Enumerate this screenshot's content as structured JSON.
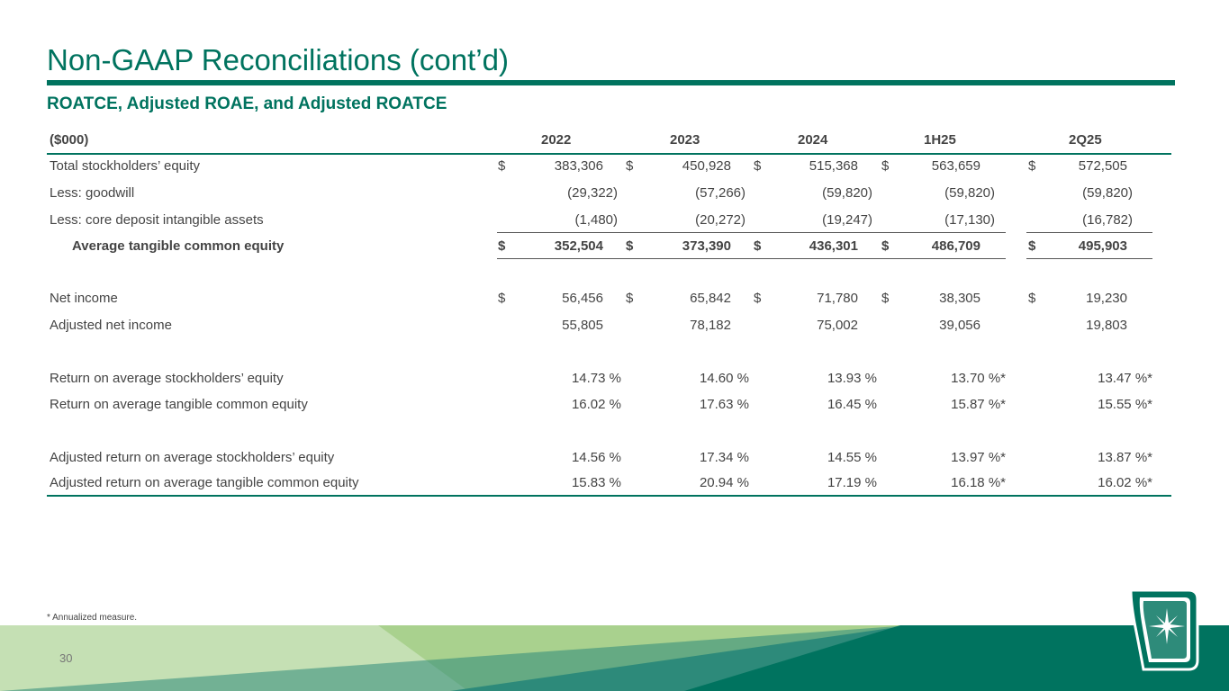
{
  "page": {
    "title": "Non-GAAP Reconciliations (cont’d)",
    "subtitle": "ROATCE, Adjusted ROAE, and Adjusted ROATCE",
    "footnote": "* Annualized measure.",
    "page_number": "30"
  },
  "colors": {
    "brand_green": "#00735f",
    "light_green": "#a9d18e",
    "pale_green": "#c5e0b4",
    "teal": "#2e8b7a"
  },
  "table": {
    "unit_label": "($000)",
    "columns": [
      "2022",
      "2023",
      "2024",
      "1H25",
      "2Q25"
    ],
    "rows": [
      {
        "label": "Total stockholders’ equity",
        "currency": "$",
        "values": [
          "383,306",
          "450,928",
          "515,368",
          "563,659",
          "572,505"
        ]
      },
      {
        "label": "Less: goodwill",
        "currency": "",
        "values": [
          "(29,322)",
          "(57,266)",
          "(59,820)",
          "(59,820)",
          "(59,820)"
        ]
      },
      {
        "label": "Less: core deposit intangible assets",
        "currency": "",
        "values": [
          "(1,480)",
          "(20,272)",
          "(19,247)",
          "(17,130)",
          "(16,782)"
        ]
      },
      {
        "label": "Average tangible common equity",
        "currency": "$",
        "values": [
          "352,504",
          "373,390",
          "436,301",
          "486,709",
          "495,903"
        ]
      },
      {
        "label": "Net income",
        "currency": "$",
        "values": [
          "56,456",
          "65,842",
          "71,780",
          "38,305",
          "19,230"
        ]
      },
      {
        "label": "Adjusted net income",
        "currency": "",
        "values": [
          "55,805",
          "78,182",
          "75,002",
          "39,056",
          "19,803"
        ]
      },
      {
        "label": "Return on average stockholders’ equity",
        "currency": "",
        "values": [
          "14.73 %",
          "14.60 %",
          "13.93 %",
          "13.70 %*",
          "13.47 %*"
        ]
      },
      {
        "label": "Return on average tangible common equity",
        "currency": "",
        "values": [
          "16.02 %",
          "17.63 %",
          "16.45 %",
          "15.87 %*",
          "15.55 %*"
        ]
      },
      {
        "label": "Adjusted return on average stockholders’ equity",
        "currency": "",
        "values": [
          "14.56 %",
          "17.34 %",
          "14.55 %",
          "13.97 %*",
          "13.87 %*"
        ]
      },
      {
        "label": "Adjusted return on average tangible common equity",
        "currency": "",
        "values": [
          "15.83 %",
          "20.94 %",
          "17.19 %",
          "16.18 %*",
          "16.02 %*"
        ]
      }
    ]
  },
  "logo": {
    "icon": "star-shield-logo"
  }
}
